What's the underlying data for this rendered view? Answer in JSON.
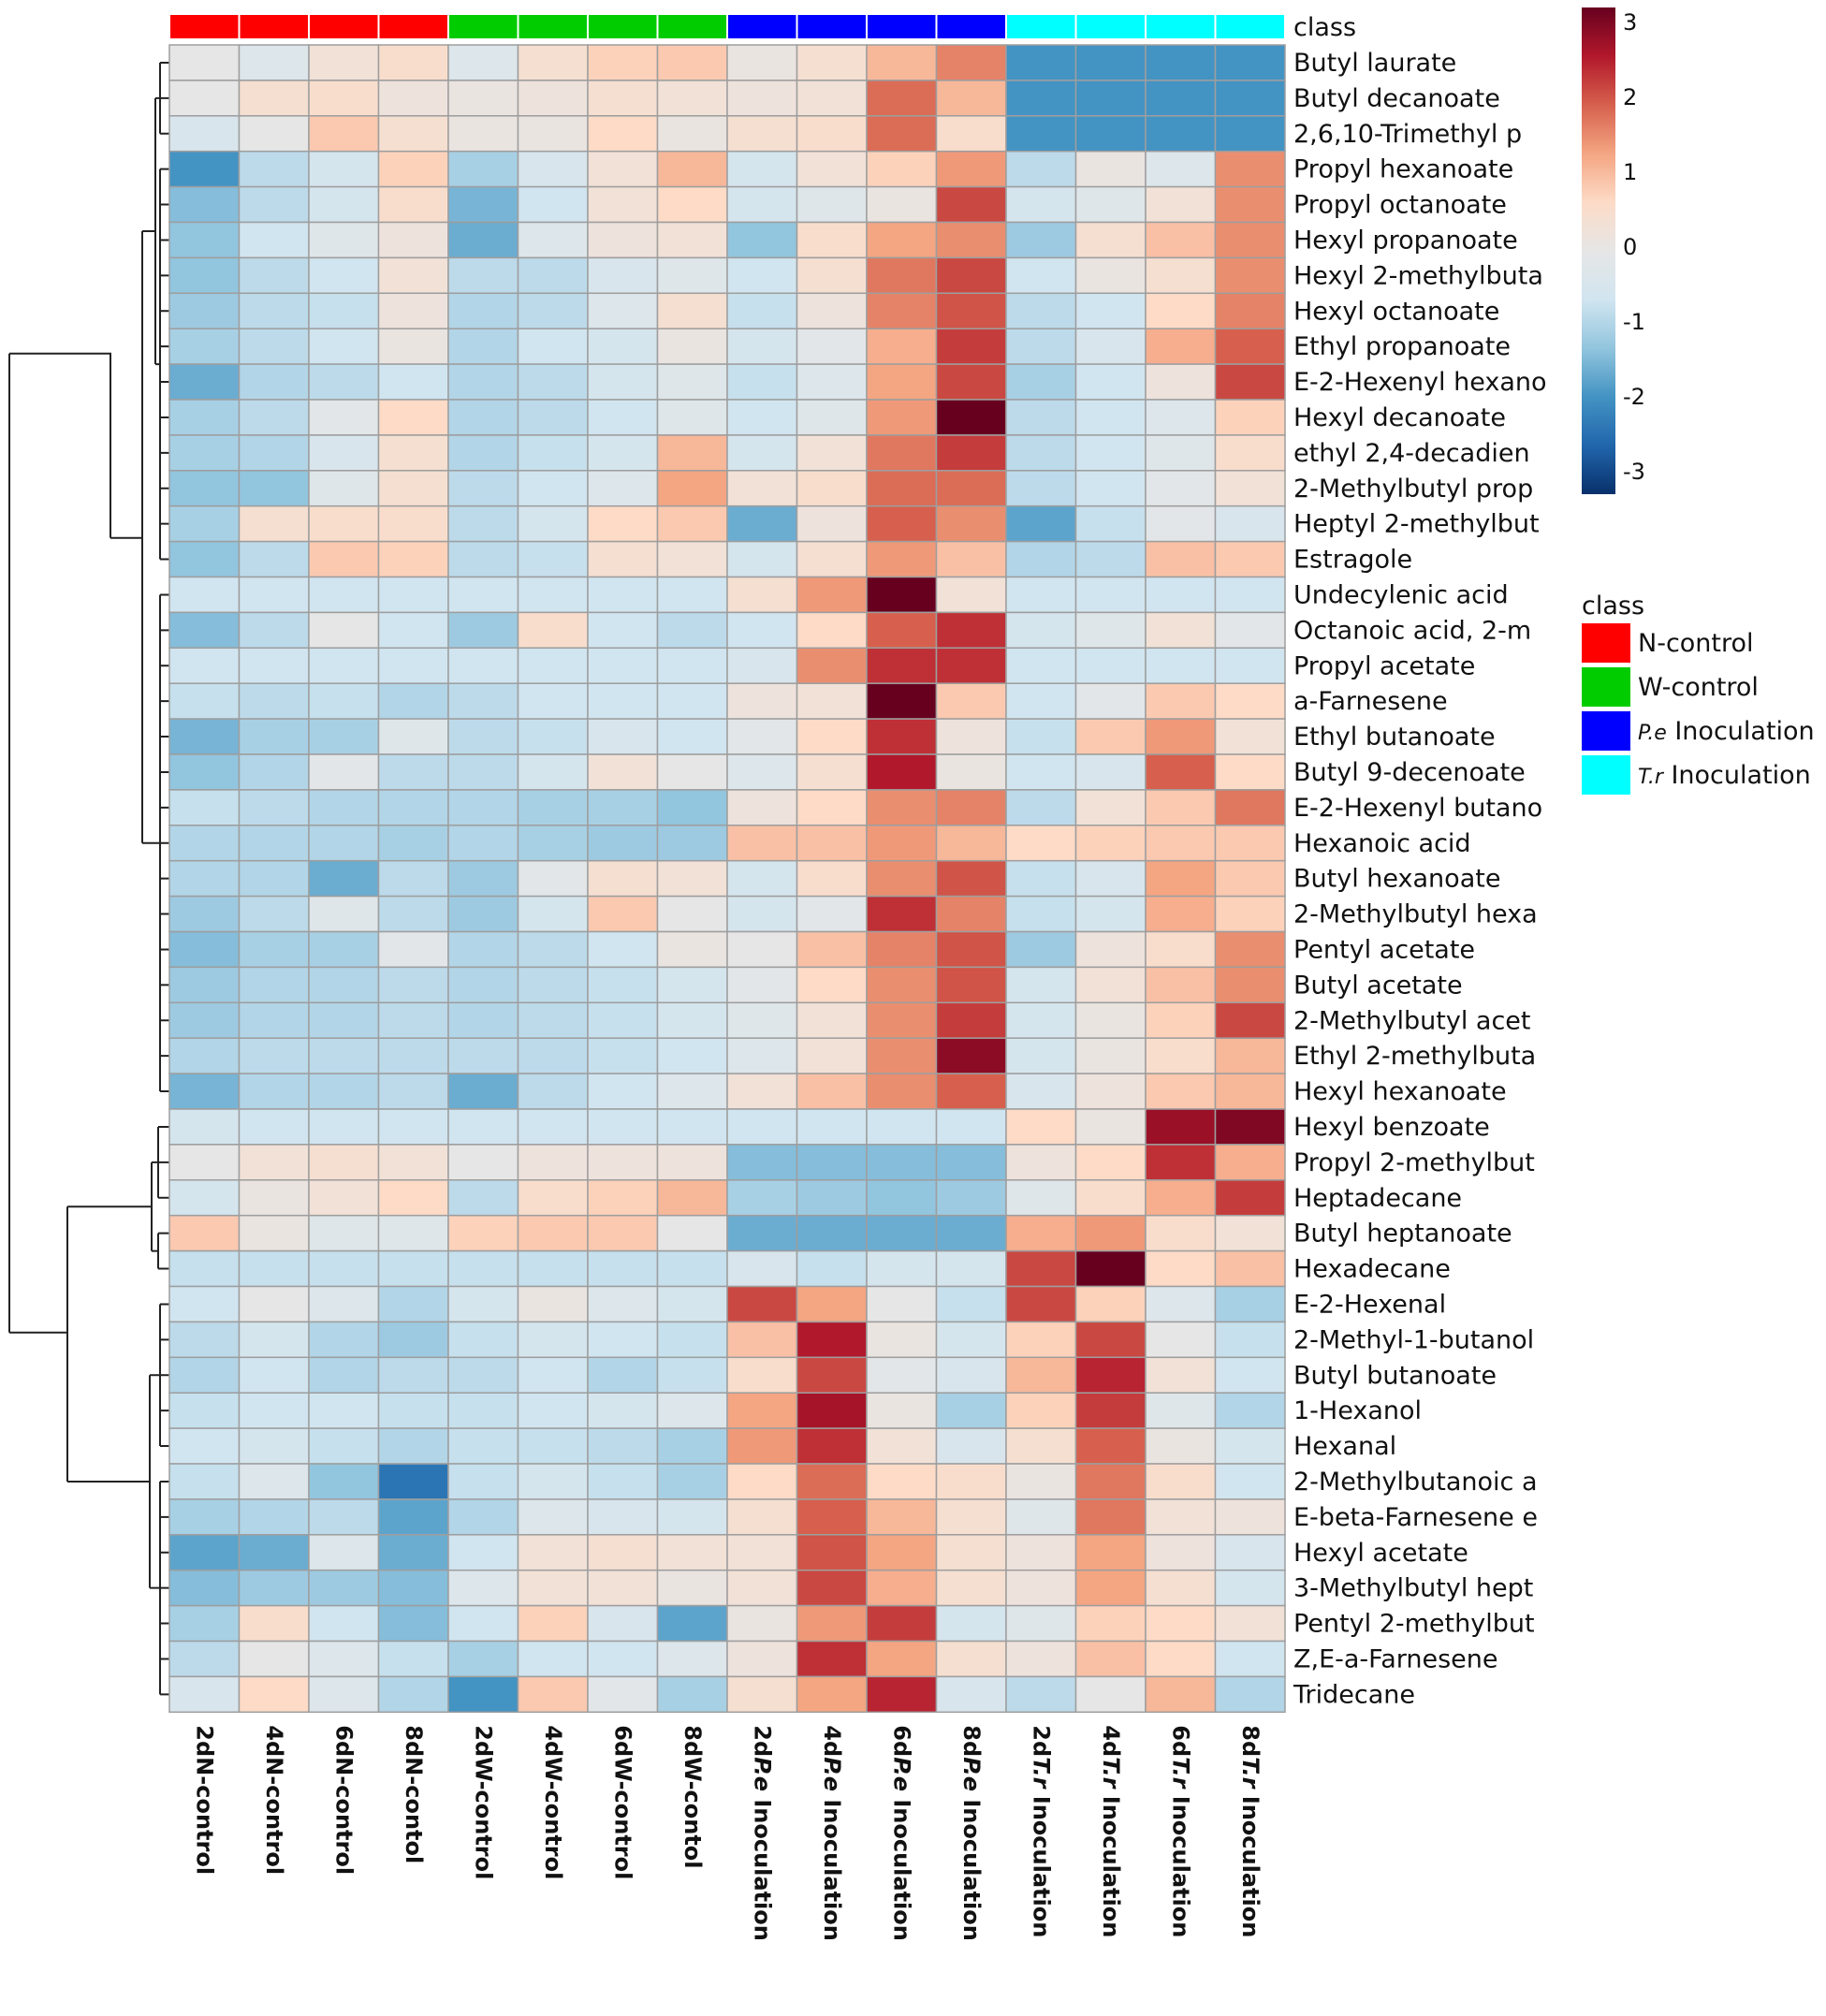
{
  "chart_data": {
    "type": "heatmap",
    "title": "",
    "class_label": "class",
    "columns": [
      "2dN-control",
      "4dN-control",
      "6dN-control",
      "8dN-contol",
      "2dW-control",
      "4dW-control",
      "6dW-control",
      "8dW-contol",
      "2dPe Inoculation",
      "4dPe Inoculation",
      "6dPe Inoculation",
      "8dPe Inoculation",
      "2dTr Inoculation",
      "4dTr Inoculation",
      "6dTr Inoculation",
      "8dTr Inoculation"
    ],
    "column_parts": [
      [
        "2dN-control",
        ""
      ],
      [
        "4dN-control",
        ""
      ],
      [
        "6dN-control",
        ""
      ],
      [
        "8dN-contol",
        ""
      ],
      [
        "2dW-control",
        ""
      ],
      [
        "4dW-control",
        ""
      ],
      [
        "6dW-control",
        ""
      ],
      [
        "8dW-contol",
        ""
      ],
      [
        "2d",
        "P.e",
        " Inoculation"
      ],
      [
        "4d",
        "P.e",
        " Inoculation"
      ],
      [
        "6d",
        "P.e",
        " Inoculation"
      ],
      [
        "8d",
        "P.e",
        " Inoculation"
      ],
      [
        "2d",
        "T.r",
        " Inoculation"
      ],
      [
        "4d",
        "T.r",
        " Inoculation"
      ],
      [
        "6d",
        "T.r",
        " Inoculation"
      ],
      [
        "8d",
        "T.r",
        " Inoculation"
      ]
    ],
    "column_classes": [
      0,
      0,
      0,
      0,
      1,
      1,
      1,
      1,
      2,
      2,
      2,
      2,
      3,
      3,
      3,
      3
    ],
    "classes": [
      {
        "name": "N-control",
        "prefix": "",
        "suffix": "N-control",
        "color": "#ff0000"
      },
      {
        "name": "W-control",
        "prefix": "",
        "suffix": "W-control",
        "color": "#00cc00"
      },
      {
        "name": "P.e Inoculation",
        "prefix": "P.e",
        "suffix": " Inoculation",
        "color": "#0000ff"
      },
      {
        "name": "T.r Inoculation",
        "prefix": "T.r",
        "suffix": " Inoculation",
        "color": "#00ffff"
      }
    ],
    "rows": [
      "Butyl laurate",
      "Butyl decanoate",
      "2,6,10-Trimethyl p",
      "Propyl hexanoate",
      "Propyl octanoate",
      "Hexyl propanoate",
      "Hexyl 2-methylbuta",
      "Hexyl octanoate",
      "Ethyl propanoate",
      "E-2-Hexenyl hexano",
      "Hexyl decanoate",
      "ethyl 2,4-decadien",
      "2-Methylbutyl prop",
      "Heptyl 2-methylbut",
      "Estragole",
      "Undecylenic acid",
      "Octanoic acid, 2-m",
      "Propyl acetate",
      "a-Farnesene",
      "Ethyl butanoate",
      "Butyl 9-decenoate",
      "E-2-Hexenyl butano",
      "Hexanoic acid",
      "Butyl hexanoate",
      "2-Methylbutyl hexa",
      "Pentyl acetate",
      "Butyl acetate",
      "2-Methylbutyl acet",
      "Ethyl 2-methylbuta",
      "Hexyl hexanoate",
      "Hexyl benzoate",
      "Propyl 2-methylbut",
      "Heptadecane",
      "Butyl heptanoate",
      "Hexadecane",
      "E-2-Hexenal",
      "2-Methyl-1-butanol",
      "Butyl butanoate",
      "1-Hexanol",
      "Hexanal",
      "2-Methylbutanoic a",
      "E-beta-Farnesene e",
      "Hexyl acetate",
      "3-Methylbutyl hept",
      "Pentyl 2-methylbut",
      "Z,E-a-Farnesene",
      "Tridecane"
    ],
    "values": [
      [
        0.0,
        -0.3,
        0.3,
        0.5,
        -0.3,
        0.4,
        0.7,
        0.8,
        0.1,
        0.4,
        1.0,
        1.5,
        -1.8,
        -1.8,
        -1.8,
        -1.8
      ],
      [
        0.0,
        0.4,
        0.5,
        0.2,
        0.1,
        0.2,
        0.4,
        0.3,
        0.2,
        0.3,
        1.7,
        1.0,
        -1.8,
        -1.8,
        -1.8,
        -1.8
      ],
      [
        -0.4,
        0.0,
        0.8,
        0.4,
        0.1,
        0.1,
        0.6,
        0.1,
        0.4,
        0.5,
        1.7,
        0.5,
        -1.8,
        -1.8,
        -1.8,
        -1.8
      ],
      [
        -1.8,
        -0.8,
        -0.5,
        0.7,
        -1.0,
        -0.4,
        0.3,
        1.0,
        -0.5,
        0.3,
        0.7,
        1.3,
        -0.8,
        0.1,
        -0.3,
        1.4
      ],
      [
        -1.3,
        -0.8,
        -0.5,
        0.5,
        -1.4,
        -0.6,
        0.3,
        0.6,
        -0.5,
        -0.2,
        0.1,
        2.0,
        -0.5,
        -0.2,
        0.3,
        1.4
      ],
      [
        -1.2,
        -0.6,
        -0.2,
        0.2,
        -1.5,
        -0.3,
        0.2,
        0.3,
        -1.2,
        0.5,
        1.2,
        1.4,
        -1.1,
        0.4,
        0.9,
        1.4
      ],
      [
        -1.2,
        -0.8,
        -0.6,
        0.3,
        -0.8,
        -0.8,
        -0.4,
        -0.2,
        -0.6,
        0.4,
        1.6,
        2.0,
        -0.6,
        0.1,
        0.4,
        1.4
      ],
      [
        -1.1,
        -0.8,
        -0.7,
        0.2,
        -0.9,
        -0.8,
        -0.3,
        0.4,
        -0.7,
        0.2,
        1.5,
        1.9,
        -0.8,
        -0.6,
        0.6,
        1.5
      ],
      [
        -1.0,
        -0.8,
        -0.6,
        0.1,
        -0.9,
        -0.6,
        -0.5,
        0.1,
        -0.5,
        -0.1,
        1.1,
        2.1,
        -0.8,
        -0.4,
        1.1,
        1.8
      ],
      [
        -1.5,
        -0.9,
        -0.8,
        -0.6,
        -0.9,
        -0.8,
        -0.5,
        -0.2,
        -0.7,
        -0.3,
        1.2,
        2.0,
        -1.0,
        -0.6,
        0.2,
        2.0
      ],
      [
        -1.0,
        -0.8,
        -0.1,
        0.6,
        -0.9,
        -0.8,
        -0.6,
        -0.2,
        -0.6,
        -0.2,
        1.3,
        3.0,
        -0.8,
        -0.6,
        -0.3,
        0.7
      ],
      [
        -1.0,
        -0.9,
        -0.4,
        0.4,
        -0.9,
        -0.7,
        -0.5,
        1.0,
        -0.5,
        0.3,
        1.6,
        2.1,
        -0.8,
        -0.6,
        -0.2,
        0.5
      ],
      [
        -1.2,
        -1.2,
        -0.2,
        0.4,
        -0.8,
        -0.6,
        -0.3,
        1.2,
        0.3,
        0.5,
        1.7,
        1.7,
        -0.8,
        -0.6,
        -0.1,
        0.3
      ],
      [
        -1.0,
        0.4,
        0.5,
        0.5,
        -0.8,
        -0.5,
        0.6,
        0.8,
        -1.5,
        0.2,
        1.8,
        1.4,
        -1.6,
        -0.7,
        -0.1,
        -0.4
      ],
      [
        -1.2,
        -0.8,
        0.8,
        0.7,
        -0.8,
        -0.7,
        0.4,
        0.3,
        -0.5,
        0.4,
        1.3,
        0.9,
        -0.9,
        -0.8,
        0.9,
        0.8
      ],
      [
        -0.6,
        -0.6,
        -0.6,
        -0.6,
        -0.6,
        -0.6,
        -0.6,
        -0.6,
        0.4,
        1.3,
        3.2,
        0.3,
        -0.6,
        -0.6,
        -0.6,
        -0.6
      ],
      [
        -1.3,
        -0.8,
        0.0,
        -0.6,
        -1.1,
        0.5,
        -0.6,
        -0.8,
        -0.6,
        0.6,
        1.8,
        2.2,
        -0.5,
        -0.2,
        0.3,
        -0.1
      ],
      [
        -0.6,
        -0.6,
        -0.6,
        -0.6,
        -0.6,
        -0.6,
        -0.6,
        -0.6,
        -0.4,
        1.4,
        2.2,
        2.2,
        -0.6,
        -0.6,
        -0.6,
        -0.6
      ],
      [
        -0.7,
        -0.8,
        -0.7,
        -0.9,
        -0.8,
        -0.6,
        -0.6,
        -0.6,
        0.2,
        0.3,
        3.0,
        0.8,
        -0.6,
        -0.1,
        0.8,
        0.6
      ],
      [
        -1.4,
        -1.0,
        -1.0,
        -0.2,
        -0.8,
        -0.7,
        -0.4,
        -0.6,
        -0.1,
        0.6,
        2.2,
        0.2,
        -0.7,
        0.8,
        1.3,
        0.3
      ],
      [
        -1.2,
        -0.9,
        -0.1,
        -0.8,
        -0.8,
        -0.5,
        0.3,
        0.0,
        -0.3,
        0.4,
        2.4,
        0.1,
        -0.6,
        -0.4,
        1.8,
        0.6
      ],
      [
        -0.7,
        -0.8,
        -0.9,
        -0.9,
        -0.9,
        -1.0,
        -1.0,
        -1.2,
        0.2,
        0.6,
        1.4,
        1.5,
        -0.8,
        0.3,
        0.8,
        1.6
      ],
      [
        -0.9,
        -0.9,
        -0.9,
        -1.0,
        -0.9,
        -1.0,
        -1.1,
        -1.1,
        0.9,
        0.9,
        1.3,
        1.0,
        0.6,
        0.7,
        0.8,
        0.8
      ],
      [
        -0.9,
        -0.9,
        -1.5,
        -0.8,
        -1.1,
        -0.1,
        0.4,
        0.3,
        -0.5,
        0.5,
        1.4,
        1.9,
        -0.7,
        -0.4,
        1.2,
        0.8
      ],
      [
        -1.1,
        -0.8,
        -0.2,
        -0.8,
        -1.1,
        -0.5,
        0.8,
        0.0,
        -0.5,
        -0.1,
        2.2,
        1.5,
        -0.7,
        -0.5,
        1.1,
        0.7
      ],
      [
        -1.3,
        -1.0,
        -1.0,
        -0.1,
        -0.9,
        -0.8,
        -0.6,
        0.1,
        0.0,
        0.9,
        1.5,
        1.9,
        -1.1,
        0.2,
        0.5,
        1.4
      ],
      [
        -1.1,
        -0.9,
        -0.9,
        -0.8,
        -0.9,
        -0.8,
        -0.7,
        -0.5,
        -0.1,
        0.6,
        1.4,
        1.9,
        -0.5,
        0.3,
        0.9,
        1.4
      ],
      [
        -1.1,
        -0.9,
        -0.9,
        -0.8,
        -0.9,
        -0.8,
        -0.7,
        -0.5,
        -0.2,
        0.3,
        1.4,
        2.1,
        -0.5,
        0.1,
        0.7,
        2.0
      ],
      [
        -0.9,
        -0.8,
        -0.8,
        -0.8,
        -0.8,
        -0.8,
        -0.7,
        -0.6,
        -0.3,
        0.3,
        1.4,
        2.7,
        -0.5,
        0.1,
        0.5,
        1.0
      ],
      [
        -1.4,
        -0.9,
        -0.9,
        -0.8,
        -1.5,
        -0.8,
        -0.6,
        -0.3,
        0.3,
        0.9,
        1.4,
        1.8,
        -0.4,
        0.2,
        0.8,
        1.0
      ],
      [
        -0.5,
        -0.6,
        -0.6,
        -0.6,
        -0.6,
        -0.6,
        -0.6,
        -0.6,
        -0.6,
        -0.6,
        -0.6,
        -0.6,
        0.6,
        0.1,
        2.6,
        2.8
      ],
      [
        0.0,
        0.3,
        0.4,
        0.3,
        0.0,
        0.2,
        0.2,
        0.2,
        -1.3,
        -1.3,
        -1.3,
        -1.3,
        0.2,
        0.6,
        2.2,
        1.1
      ],
      [
        -0.5,
        0.1,
        0.3,
        0.6,
        -0.8,
        0.5,
        0.7,
        1.0,
        -1.0,
        -1.1,
        -1.2,
        -1.1,
        -0.2,
        0.5,
        1.1,
        2.1
      ],
      [
        0.8,
        0.1,
        -0.2,
        -0.2,
        0.7,
        0.8,
        0.8,
        0.0,
        -1.5,
        -1.5,
        -1.5,
        -1.5,
        1.1,
        1.3,
        0.5,
        0.3
      ],
      [
        -0.7,
        -0.7,
        -0.7,
        -0.7,
        -0.7,
        -0.7,
        -0.7,
        -0.7,
        -0.4,
        -0.7,
        -0.5,
        -0.5,
        2.0,
        3.0,
        0.6,
        0.9
      ],
      [
        -0.6,
        0.0,
        -0.3,
        -0.9,
        -0.5,
        0.1,
        -0.3,
        -0.5,
        2.0,
        1.2,
        0.0,
        -0.7,
        2.0,
        0.7,
        -0.3,
        -1.0
      ],
      [
        -0.8,
        -0.5,
        -0.9,
        -1.1,
        -0.7,
        -0.5,
        -0.6,
        -0.7,
        0.9,
        2.4,
        0.1,
        -0.5,
        0.7,
        2.0,
        0.0,
        -0.7
      ],
      [
        -0.9,
        -0.6,
        -0.9,
        -0.8,
        -0.8,
        -0.6,
        -0.9,
        -0.7,
        0.5,
        2.0,
        -0.1,
        -0.4,
        1.0,
        2.3,
        0.3,
        -0.6
      ],
      [
        -0.7,
        -0.6,
        -0.6,
        -0.7,
        -0.7,
        -0.6,
        -0.5,
        -0.3,
        1.2,
        2.5,
        0.1,
        -1.0,
        0.7,
        2.1,
        -0.2,
        -0.9
      ],
      [
        -0.6,
        -0.5,
        -0.7,
        -0.9,
        -0.7,
        -0.7,
        -0.8,
        -1.0,
        1.3,
        2.2,
        0.3,
        -0.4,
        0.4,
        1.8,
        0.1,
        -0.5
      ],
      [
        -0.7,
        -0.3,
        -1.2,
        -2.2,
        -0.7,
        -0.5,
        -0.7,
        -1.0,
        0.6,
        1.7,
        0.6,
        0.5,
        0.1,
        1.6,
        0.5,
        -0.6
      ],
      [
        -1.0,
        -0.9,
        -0.8,
        -1.6,
        -0.9,
        -0.3,
        -0.4,
        -0.5,
        0.4,
        1.8,
        1.0,
        0.4,
        -0.2,
        1.6,
        0.3,
        0.2
      ],
      [
        -1.6,
        -1.5,
        -0.3,
        -1.5,
        -0.6,
        0.3,
        0.4,
        0.3,
        0.3,
        1.9,
        1.2,
        0.4,
        0.2,
        1.2,
        0.2,
        -0.4
      ],
      [
        -1.3,
        -1.1,
        -1.1,
        -1.3,
        -0.3,
        0.3,
        0.3,
        0.1,
        0.3,
        2.0,
        1.1,
        0.4,
        0.2,
        1.2,
        0.4,
        -0.5
      ],
      [
        -1.0,
        0.5,
        -0.6,
        -1.3,
        -0.6,
        0.7,
        -0.4,
        -1.6,
        0.1,
        1.3,
        2.1,
        -0.5,
        -0.2,
        0.7,
        0.6,
        0.3
      ],
      [
        -0.8,
        0.0,
        -0.3,
        -0.7,
        -1.0,
        -0.6,
        -0.6,
        -0.3,
        0.2,
        2.2,
        1.2,
        0.4,
        0.2,
        0.9,
        0.6,
        -0.6
      ],
      [
        -0.4,
        0.6,
        -0.3,
        -0.9,
        -1.8,
        0.8,
        -0.1,
        -1.0,
        0.4,
        1.2,
        2.3,
        -0.4,
        -0.8,
        0.0,
        1.0,
        -0.9
      ]
    ],
    "color_scale": {
      "min": -3,
      "max": 3,
      "ticks": [
        3,
        2,
        1,
        0,
        -1,
        -2,
        -3
      ],
      "stops": [
        "#08306b",
        "#2166ac",
        "#4393c3",
        "#92c5de",
        "#d1e5f0",
        "#e6e6e6",
        "#fddbc7",
        "#f4a582",
        "#d6604d",
        "#b2182b",
        "#67001f"
      ]
    },
    "legend": {
      "title": "class",
      "placement": "right"
    },
    "row_dendrogram": true
  }
}
